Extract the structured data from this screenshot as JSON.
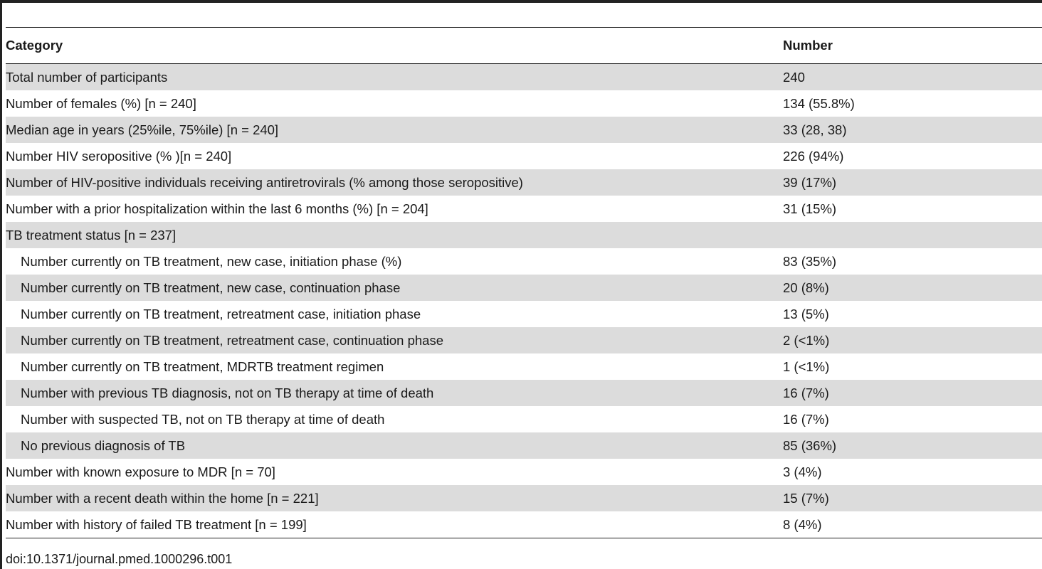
{
  "table": {
    "headers": [
      "Category",
      "Number"
    ],
    "rows": [
      {
        "label": "Total number of participants",
        "value": "240",
        "indent": false,
        "shaded": true
      },
      {
        "label": "Number of females (%) [n = 240]",
        "value": "134 (55.8%)",
        "indent": false,
        "shaded": false
      },
      {
        "label": "Median age in years (25%ile, 75%ile) [n = 240]",
        "value": "33 (28, 38)",
        "indent": false,
        "shaded": true
      },
      {
        "label": "Number HIV seropositive (% )[n = 240]",
        "value": "226 (94%)",
        "indent": false,
        "shaded": false
      },
      {
        "label": "Number of HIV-positive individuals receiving antiretrovirals (% among those seropositive)",
        "value": "39 (17%)",
        "indent": false,
        "shaded": true
      },
      {
        "label": "Number with a prior hospitalization within the last 6 months (%) [n = 204]",
        "value": "31 (15%)",
        "indent": false,
        "shaded": false
      },
      {
        "label": "TB treatment status [n = 237]",
        "value": "",
        "indent": false,
        "shaded": true
      },
      {
        "label": "Number currently on TB treatment, new case, initiation phase (%)",
        "value": "83 (35%)",
        "indent": true,
        "shaded": false
      },
      {
        "label": "Number currently on TB treatment, new case, continuation phase",
        "value": "20 (8%)",
        "indent": true,
        "shaded": true
      },
      {
        "label": "Number currently on TB treatment, retreatment case, initiation phase",
        "value": "13 (5%)",
        "indent": true,
        "shaded": false
      },
      {
        "label": "Number currently on TB treatment, retreatment case, continuation phase",
        "value": "2 (<1%)",
        "indent": true,
        "shaded": true
      },
      {
        "label": "Number currently on TB treatment, MDRTB treatment regimen",
        "value": "1 (<1%)",
        "indent": true,
        "shaded": false
      },
      {
        "label": "Number with previous TB diagnosis, not on TB therapy at time of death",
        "value": "16 (7%)",
        "indent": true,
        "shaded": true
      },
      {
        "label": "Number with suspected TB, not on TB therapy at time of death",
        "value": "16 (7%)",
        "indent": true,
        "shaded": false
      },
      {
        "label": "No previous diagnosis of TB",
        "value": "85 (36%)",
        "indent": true,
        "shaded": true
      },
      {
        "label": "Number with known exposure to MDR [n = 70]",
        "value": "3 (4%)",
        "indent": false,
        "shaded": false
      },
      {
        "label": "Number with a recent death within the home [n = 221]",
        "value": "15 (7%)",
        "indent": false,
        "shaded": true
      },
      {
        "label": "Number with history of failed TB treatment [n = 199]",
        "value": "8 (4%)",
        "indent": false,
        "shaded": false
      }
    ]
  },
  "footer": {
    "doi": "doi:10.1371/journal.pmed.1000296.t001"
  },
  "colors": {
    "shade": "#dcdcdc",
    "rule": "#222222"
  }
}
